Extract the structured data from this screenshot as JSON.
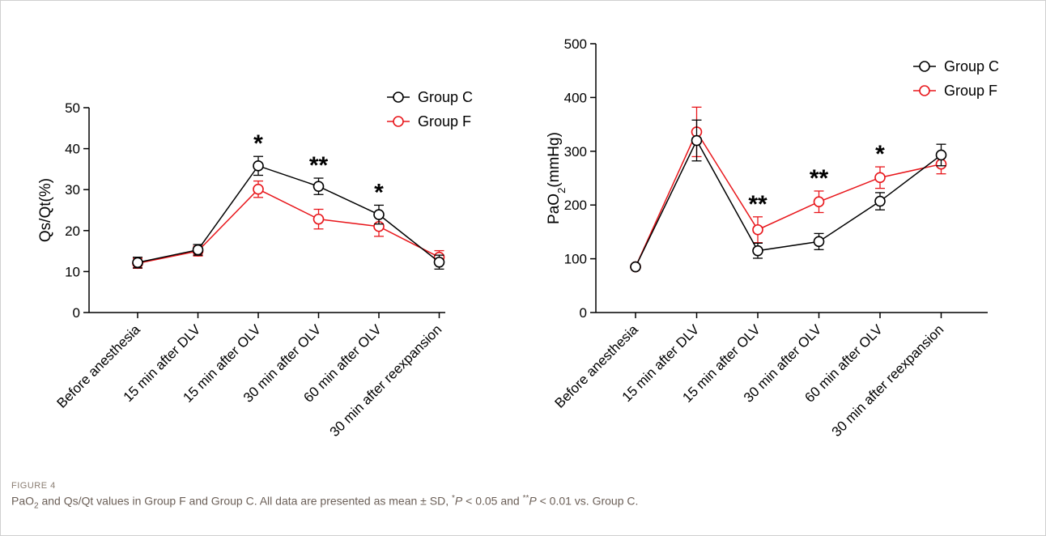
{
  "chart_data": [
    {
      "type": "line",
      "ylabel": "Qs/Qt(%)",
      "xlabel": "",
      "ylim": [
        0,
        50
      ],
      "yticks": [
        0,
        10,
        20,
        30,
        40,
        50
      ],
      "categories": [
        "Before anesthesia",
        "15 min after DLV",
        "15 min after OLV",
        "30 min after OLV",
        "60 min after OLV",
        "30 min after reexpansion"
      ],
      "legend_position": "top-right",
      "grid": false,
      "series": [
        {
          "name": "Group C",
          "color": "#000000",
          "values": [
            12.2,
            15.3,
            35.8,
            30.8,
            23.9,
            12.3
          ],
          "sd": [
            1.3,
            1.3,
            2.3,
            2.0,
            2.3,
            1.7
          ]
        },
        {
          "name": "Group F",
          "color": "#e8161b",
          "values": [
            12.0,
            15.0,
            30.1,
            22.8,
            21.0,
            13.5
          ],
          "sd": [
            1.2,
            1.2,
            2.0,
            2.4,
            2.4,
            1.6
          ]
        }
      ],
      "annotations": [
        {
          "category": "15 min after OLV",
          "text": "*"
        },
        {
          "category": "30 min after OLV",
          "text": "**"
        },
        {
          "category": "60 min after OLV",
          "text": "*"
        }
      ]
    },
    {
      "type": "line",
      "ylabel": "PaO2(mmHg)",
      "xlabel": "",
      "ylim": [
        0,
        500
      ],
      "yticks": [
        0,
        100,
        200,
        300,
        400,
        500
      ],
      "categories": [
        "Before anesthesia",
        "15 min after DLV",
        "15 min after OLV",
        "30 min after OLV",
        "60 min after OLV",
        "30 min after reexpansion"
      ],
      "legend_position": "top-right",
      "grid": false,
      "series": [
        {
          "name": "Group C",
          "color": "#000000",
          "values": [
            85,
            320,
            115,
            132,
            207,
            293
          ],
          "sd": [
            3,
            38,
            14,
            15,
            16,
            20
          ]
        },
        {
          "name": "Group F",
          "color": "#e8161b",
          "values": [
            85,
            336,
            154,
            206,
            251,
            276
          ],
          "sd": [
            3,
            46,
            24,
            20,
            20,
            18
          ]
        }
      ],
      "annotations": [
        {
          "category": "15 min after OLV",
          "text": "**"
        },
        {
          "category": "30 min after OLV",
          "text": "**"
        },
        {
          "category": "60 min after OLV",
          "text": "*"
        }
      ]
    }
  ],
  "caption": {
    "label": "FIGURE 4",
    "text": "PaO2 and Qs/Qt values in Group F and Group C. All data are presented as mean ± SD, *P < 0.05 and **P < 0.01 vs. Group C."
  }
}
